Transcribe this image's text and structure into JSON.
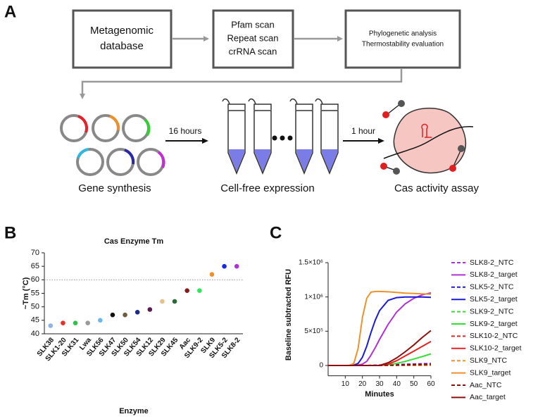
{
  "panel_labels": [
    "A",
    "B",
    "C"
  ],
  "diagram": {
    "boxes": [
      [
        "Metagenomic",
        "database"
      ],
      [
        "Pfam scan",
        "Repeat scan",
        "crRNA scan"
      ],
      [
        "Phylogenetic analysis",
        "Thermostability evaluation"
      ]
    ],
    "arrow_labels": [
      "16 hours",
      "1 hour"
    ],
    "captions": [
      "Gene synthesis",
      "Cell-free expression",
      "Cas activity assay"
    ]
  },
  "chart_data": [
    {
      "type": "dot",
      "title": "Cas Enzyme Tm",
      "x_label": "Enzyme",
      "y_label": "~Tm (°C)",
      "categories": [
        "SLK38",
        "SLK1-20",
        "SLK31",
        "Lwa",
        "SLK56",
        "SLK47",
        "SLK50",
        "SLK54",
        "SLK12",
        "SLK29",
        "SLK45",
        "Aac",
        "SLK9-2",
        "SLK9",
        "SLK5-2",
        "SLK8-2"
      ],
      "values": [
        43,
        44,
        44,
        44,
        45,
        47,
        47,
        48,
        49,
        52,
        52,
        56,
        56,
        62,
        65,
        65
      ],
      "colors": [
        "#8fb2ea",
        "#e8302a",
        "#2fbf4a",
        "#9a9a9a",
        "#6cb8e8",
        "#111111",
        "#6e5a3c",
        "#1c2a8a",
        "#5a1a4a",
        "#e8c08a",
        "#2a6a3a",
        "#8a1a1a",
        "#2ee85a",
        "#f0902a",
        "#1a2ae0",
        "#b030d8"
      ],
      "ylim": [
        40,
        70
      ],
      "yticks": [
        40,
        45,
        50,
        55,
        60,
        65,
        70
      ],
      "reference_line": 60
    },
    {
      "type": "line",
      "x_label": "Minutes",
      "y_label": "Baseline subtracted RFU",
      "x": [
        0,
        5,
        10,
        12.5,
        15,
        17.5,
        20,
        22.5,
        25,
        27.5,
        30,
        35,
        40,
        45,
        50,
        55,
        60
      ],
      "xlim": [
        0,
        60
      ],
      "xticks": [
        10,
        20,
        30,
        40,
        50,
        60
      ],
      "ylim": [
        -150000,
        1500000
      ],
      "yticks": [
        0,
        {
          "value": 500000,
          "label": "5×10⁵"
        },
        {
          "value": 1000000,
          "label": "1×10⁶"
        },
        {
          "value": 1500000,
          "label": "1.5×10⁶"
        }
      ],
      "series": [
        {
          "name": "SLK8-2_NTC",
          "color": "#b030d8",
          "dash": true,
          "values": [
            0,
            0,
            0,
            0,
            0,
            0,
            0,
            0,
            2000,
            4000,
            6000,
            10000,
            14000,
            18000,
            22000,
            26000,
            30000
          ]
        },
        {
          "name": "SLK8-2_target",
          "color": "#b030d8",
          "dash": false,
          "values": [
            0,
            0,
            0,
            0,
            0,
            5000,
            20000,
            60000,
            150000,
            260000,
            380000,
            600000,
            780000,
            900000,
            980000,
            1030000,
            1060000
          ]
        },
        {
          "name": "SLK5-2_NTC",
          "color": "#1a1ad8",
          "dash": true,
          "values": [
            0,
            0,
            0,
            0,
            0,
            0,
            0,
            0,
            1000,
            2000,
            3000,
            6000,
            9000,
            12000,
            15000,
            18000,
            20000
          ]
        },
        {
          "name": "SLK5-2_target",
          "color": "#1a1ad8",
          "dash": false,
          "values": [
            0,
            0,
            0,
            0,
            5000,
            30000,
            120000,
            280000,
            480000,
            660000,
            800000,
            950000,
            990000,
            1000000,
            1000000,
            1000000,
            995000
          ]
        },
        {
          "name": "SLK9-2_NTC",
          "color": "#30e030",
          "dash": true,
          "values": [
            0,
            0,
            0,
            0,
            0,
            0,
            0,
            0,
            0,
            0,
            0,
            0,
            0,
            0,
            0,
            0,
            0
          ]
        },
        {
          "name": "SLK9-2_target",
          "color": "#30e030",
          "dash": false,
          "values": [
            0,
            0,
            0,
            0,
            0,
            0,
            0,
            0,
            0,
            0,
            0,
            10000,
            30000,
            60000,
            95000,
            130000,
            170000
          ]
        },
        {
          "name": "SLK10-2_NTC",
          "color": "#e82020",
          "dash": true,
          "values": [
            0,
            0,
            0,
            0,
            0,
            0,
            0,
            0,
            0,
            0,
            0,
            2000,
            4000,
            6000,
            8000,
            9000,
            10000
          ]
        },
        {
          "name": "SLK10-2_target",
          "color": "#e82020",
          "dash": false,
          "values": [
            0,
            0,
            0,
            0,
            0,
            0,
            0,
            0,
            0,
            0,
            0,
            20000,
            70000,
            140000,
            210000,
            280000,
            350000
          ]
        },
        {
          "name": "SLK9_NTC",
          "color": "#f0902a",
          "dash": true,
          "values": [
            0,
            0,
            0,
            0,
            0,
            0,
            0,
            0,
            0,
            0,
            0,
            0,
            0,
            0,
            0,
            0,
            0
          ]
        },
        {
          "name": "SLK9_target",
          "color": "#f0902a",
          "dash": false,
          "values": [
            0,
            0,
            0,
            2000,
            30000,
            250000,
            700000,
            980000,
            1070000,
            1080000,
            1080000,
            1075000,
            1065000,
            1055000,
            1050000,
            1045000,
            1040000
          ]
        },
        {
          "name": "Aac_NTC",
          "color": "#8a1010",
          "dash": true,
          "values": [
            0,
            0,
            0,
            0,
            0,
            0,
            0,
            0,
            0,
            0,
            1000,
            3000,
            5000,
            8000,
            10000,
            13000,
            15000
          ]
        },
        {
          "name": "Aac_target",
          "color": "#8a1010",
          "dash": false,
          "values": [
            0,
            0,
            0,
            0,
            0,
            0,
            0,
            0,
            0,
            0,
            0,
            40000,
            110000,
            200000,
            300000,
            410000,
            510000
          ]
        }
      ]
    }
  ]
}
